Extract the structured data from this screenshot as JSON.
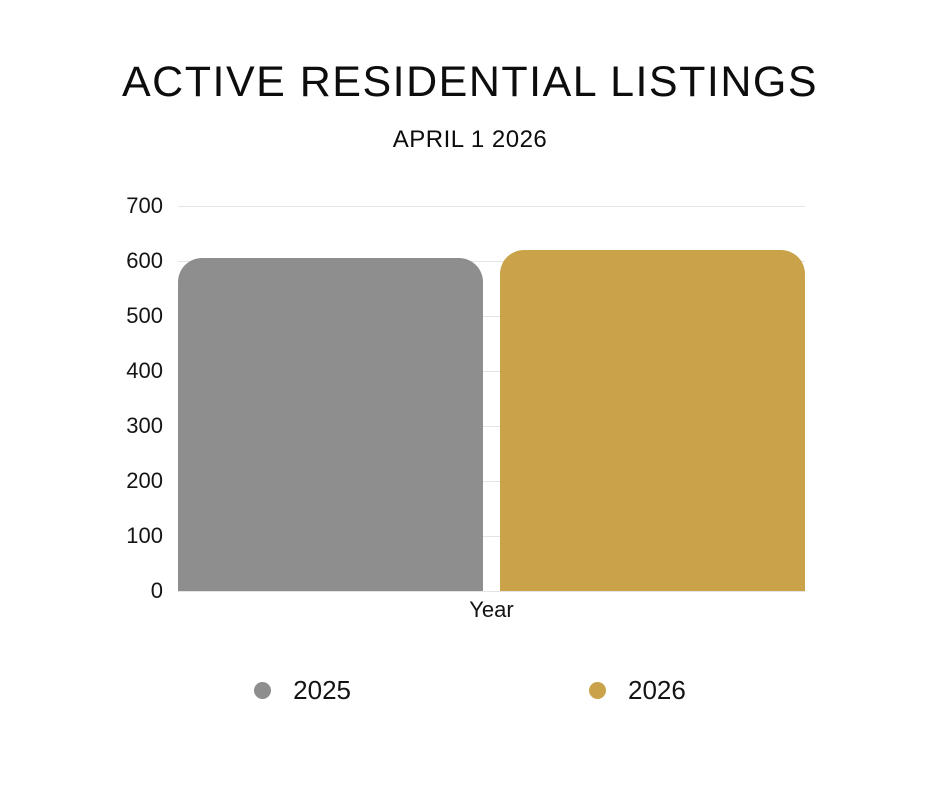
{
  "chart_data": {
    "type": "bar",
    "title": "ACTIVE RESIDENTIAL LISTINGS",
    "subtitle": "APRIL 1 2026",
    "xlabel": "Year",
    "categories": [
      "Year"
    ],
    "series": [
      {
        "name": "2025",
        "value": 605,
        "color": "#8E8E8E"
      },
      {
        "name": "2026",
        "value": 620,
        "color": "#C9A24A"
      }
    ],
    "y_ticks": [
      700,
      600,
      500,
      400,
      300,
      200,
      100,
      0
    ],
    "ylim": [
      0,
      700
    ],
    "grid": true,
    "gridline_color": "#e4e4e4",
    "legend_position": "bottom",
    "background_color": "#ffffff",
    "text_color": "#111111"
  }
}
